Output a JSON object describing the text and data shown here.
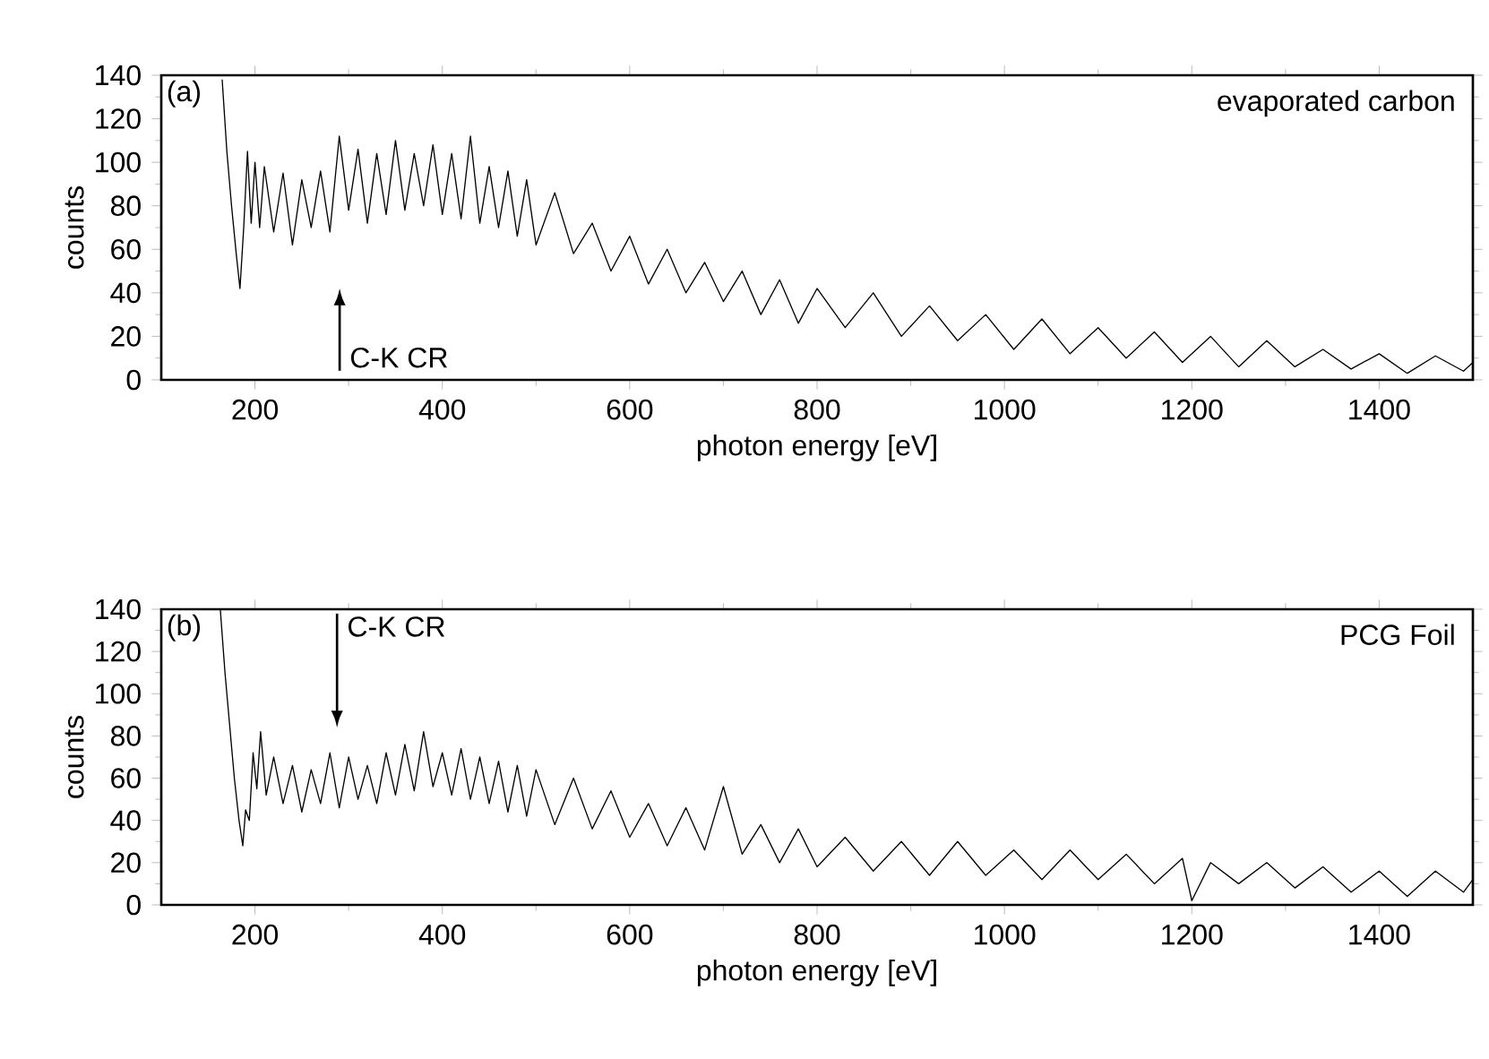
{
  "chart_data": [
    {
      "type": "line",
      "xlabel": "photon energy [eV]",
      "ylabel": "counts",
      "xlim": [
        100,
        1500
      ],
      "ylim": [
        0,
        140
      ],
      "xticks": [
        200,
        400,
        600,
        800,
        1000,
        1200,
        1400
      ],
      "yticks": [
        0,
        20,
        40,
        60,
        80,
        100,
        120,
        140
      ],
      "grid": false,
      "marker": "none",
      "line_style": "solid",
      "annotations": [
        "(a)",
        "evaporated carbon",
        "C-K CR"
      ],
      "series": [
        {
          "color": "#000000",
          "x": [
            165,
            170,
            175,
            180,
            184,
            188,
            192,
            196,
            200,
            205,
            210,
            220,
            230,
            240,
            250,
            260,
            270,
            280,
            290,
            300,
            310,
            320,
            330,
            340,
            350,
            360,
            370,
            380,
            390,
            400,
            410,
            420,
            430,
            440,
            450,
            460,
            470,
            480,
            490,
            500,
            520,
            540,
            560,
            580,
            600,
            620,
            640,
            660,
            680,
            700,
            720,
            740,
            760,
            780,
            800,
            830,
            860,
            890,
            920,
            950,
            980,
            1010,
            1040,
            1070,
            1100,
            1130,
            1160,
            1190,
            1220,
            1250,
            1280,
            1310,
            1340,
            1370,
            1400,
            1430,
            1460,
            1490,
            1500
          ],
          "values": [
            138,
            105,
            80,
            58,
            42,
            70,
            105,
            72,
            100,
            70,
            98,
            68,
            95,
            62,
            92,
            70,
            96,
            68,
            112,
            78,
            106,
            72,
            104,
            76,
            110,
            78,
            104,
            80,
            108,
            76,
            104,
            74,
            112,
            72,
            98,
            70,
            96,
            66,
            92,
            62,
            86,
            58,
            72,
            50,
            66,
            44,
            60,
            40,
            54,
            36,
            50,
            30,
            46,
            26,
            42,
            24,
            40,
            20,
            34,
            18,
            30,
            14,
            28,
            12,
            24,
            10,
            22,
            8,
            20,
            6,
            18,
            6,
            14,
            5,
            12,
            3,
            11,
            4,
            8
          ]
        }
      ]
    },
    {
      "type": "line",
      "xlabel": "photon energy [eV]",
      "ylabel": "counts",
      "xlim": [
        100,
        1500
      ],
      "ylim": [
        0,
        140
      ],
      "xticks": [
        200,
        400,
        600,
        800,
        1000,
        1200,
        1400
      ],
      "yticks": [
        0,
        20,
        40,
        60,
        80,
        100,
        120,
        140
      ],
      "grid": false,
      "marker": "none",
      "line_style": "solid",
      "annotations": [
        "(b)",
        "PCG Foil",
        "C-K CR"
      ],
      "series": [
        {
          "color": "#000000",
          "x": [
            163,
            168,
            173,
            178,
            183,
            187,
            190,
            194,
            198,
            202,
            206,
            212,
            220,
            230,
            240,
            250,
            260,
            270,
            280,
            290,
            300,
            310,
            320,
            330,
            340,
            350,
            360,
            370,
            380,
            390,
            400,
            410,
            420,
            430,
            440,
            450,
            460,
            470,
            480,
            490,
            500,
            520,
            540,
            560,
            580,
            600,
            620,
            640,
            660,
            680,
            700,
            720,
            740,
            760,
            780,
            800,
            830,
            860,
            890,
            920,
            950,
            980,
            1010,
            1040,
            1070,
            1100,
            1130,
            1160,
            1190,
            1200,
            1220,
            1250,
            1280,
            1310,
            1340,
            1370,
            1400,
            1430,
            1460,
            1490,
            1500
          ],
          "values": [
            140,
            110,
            85,
            60,
            40,
            28,
            45,
            40,
            72,
            55,
            82,
            52,
            70,
            48,
            66,
            44,
            64,
            48,
            72,
            46,
            70,
            50,
            66,
            48,
            72,
            52,
            76,
            54,
            82,
            56,
            72,
            52,
            74,
            50,
            70,
            48,
            68,
            44,
            66,
            42,
            64,
            38,
            60,
            36,
            54,
            32,
            48,
            28,
            46,
            26,
            56,
            24,
            38,
            20,
            36,
            18,
            32,
            16,
            30,
            14,
            30,
            14,
            26,
            12,
            26,
            12,
            24,
            10,
            22,
            2,
            20,
            10,
            20,
            8,
            18,
            6,
            16,
            4,
            16,
            6,
            12
          ]
        }
      ]
    }
  ]
}
